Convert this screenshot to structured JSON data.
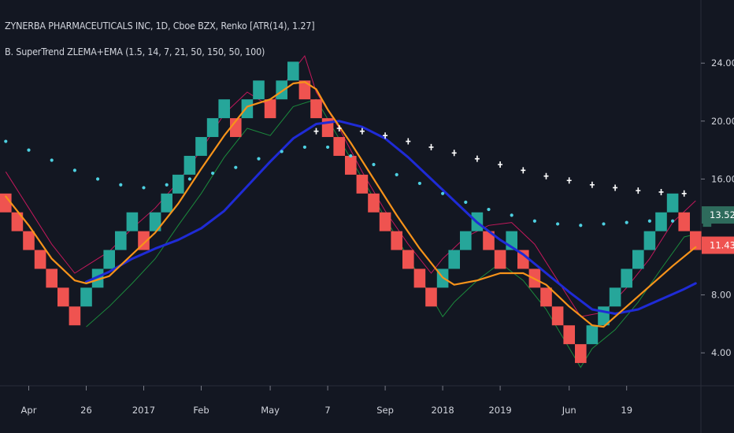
{
  "header": {
    "title": "ZYNERBA PHARMACEUTICALS INC, 1D, Cboe BZX, Renko [ATR(14), 1.27]",
    "indicator": "B. SuperTrend ZLEMA+EMA (1.5, 14, 7, 21, 50, 150, 50, 100)"
  },
  "colors": {
    "background": "#131722",
    "up_brick": "#26a69a",
    "down_brick": "#ef5350",
    "zlema_line": "#f7931a",
    "ema_line": "#1f2bd6",
    "cyan_dots": "#4dd0e1",
    "white_markers": "#ffffff",
    "red_trend": "#c2185b",
    "green_trend": "#1b8a3c"
  },
  "price_tags": [
    {
      "label": "13.52",
      "value": 13.52,
      "color": "#2e6b5c"
    },
    {
      "label": "11.43",
      "value": 11.43,
      "color": "#ef5350"
    }
  ],
  "chart_data": {
    "type": "renko",
    "title": "ZYNERBA PHARMACEUTICALS INC, 1D, Cboe BZX, Renko [ATR(14), 1.27]",
    "xlabel": "",
    "ylabel": "",
    "ylim": [
      2.0,
      27.0
    ],
    "y_ticks": [
      {
        "label": "24.00",
        "value": 24.0
      },
      {
        "label": "20.00",
        "value": 20.0
      },
      {
        "label": "16.00",
        "value": 16.0
      },
      {
        "label": "8.00",
        "value": 8.0
      },
      {
        "label": "4.00",
        "value": 4.0
      }
    ],
    "x_ticks": [
      {
        "label": "Apr",
        "index": 2
      },
      {
        "label": "26",
        "index": 7
      },
      {
        "label": "2017",
        "index": 12
      },
      {
        "label": "Feb",
        "index": 17
      },
      {
        "label": "May",
        "index": 23
      },
      {
        "label": "7",
        "index": 28
      },
      {
        "label": "Sep",
        "index": 33
      },
      {
        "label": "2018",
        "index": 38
      },
      {
        "label": "2019",
        "index": 43
      },
      {
        "label": "Jun",
        "index": 49
      },
      {
        "label": "19",
        "index": 54
      }
    ],
    "bricks": [
      {
        "i": 0,
        "dir": "down",
        "open": 15.0,
        "close": 13.7
      },
      {
        "i": 1,
        "dir": "down",
        "open": 13.7,
        "close": 12.4
      },
      {
        "i": 2,
        "dir": "down",
        "open": 12.4,
        "close": 11.1
      },
      {
        "i": 3,
        "dir": "down",
        "open": 11.1,
        "close": 9.8
      },
      {
        "i": 4,
        "dir": "down",
        "open": 9.8,
        "close": 8.5
      },
      {
        "i": 5,
        "dir": "down",
        "open": 8.5,
        "close": 7.2
      },
      {
        "i": 6,
        "dir": "down",
        "open": 7.2,
        "close": 5.9
      },
      {
        "i": 7,
        "dir": "up",
        "open": 7.2,
        "close": 8.5
      },
      {
        "i": 8,
        "dir": "up",
        "open": 8.5,
        "close": 9.8
      },
      {
        "i": 9,
        "dir": "up",
        "open": 9.8,
        "close": 11.1
      },
      {
        "i": 10,
        "dir": "up",
        "open": 11.1,
        "close": 12.4
      },
      {
        "i": 11,
        "dir": "up",
        "open": 12.4,
        "close": 13.7
      },
      {
        "i": 12,
        "dir": "down",
        "open": 12.4,
        "close": 11.1
      },
      {
        "i": 13,
        "dir": "up",
        "open": 12.4,
        "close": 13.7
      },
      {
        "i": 14,
        "dir": "up",
        "open": 13.7,
        "close": 15.0
      },
      {
        "i": 15,
        "dir": "up",
        "open": 15.0,
        "close": 16.3
      },
      {
        "i": 16,
        "dir": "up",
        "open": 16.3,
        "close": 17.6
      },
      {
        "i": 17,
        "dir": "up",
        "open": 17.6,
        "close": 18.9
      },
      {
        "i": 18,
        "dir": "up",
        "open": 18.9,
        "close": 20.2
      },
      {
        "i": 19,
        "dir": "up",
        "open": 20.2,
        "close": 21.5
      },
      {
        "i": 20,
        "dir": "down",
        "open": 20.2,
        "close": 18.9
      },
      {
        "i": 21,
        "dir": "up",
        "open": 20.2,
        "close": 21.5
      },
      {
        "i": 22,
        "dir": "up",
        "open": 21.5,
        "close": 22.8
      },
      {
        "i": 23,
        "dir": "down",
        "open": 21.5,
        "close": 20.2
      },
      {
        "i": 24,
        "dir": "up",
        "open": 21.5,
        "close": 22.8
      },
      {
        "i": 25,
        "dir": "up",
        "open": 22.8,
        "close": 24.1
      },
      {
        "i": 26,
        "dir": "down",
        "open": 22.8,
        "close": 21.5
      },
      {
        "i": 27,
        "dir": "down",
        "open": 21.5,
        "close": 20.2
      },
      {
        "i": 28,
        "dir": "down",
        "open": 20.2,
        "close": 18.9
      },
      {
        "i": 29,
        "dir": "down",
        "open": 18.9,
        "close": 17.6
      },
      {
        "i": 30,
        "dir": "down",
        "open": 17.6,
        "close": 16.3
      },
      {
        "i": 31,
        "dir": "down",
        "open": 16.3,
        "close": 15.0
      },
      {
        "i": 32,
        "dir": "down",
        "open": 15.0,
        "close": 13.7
      },
      {
        "i": 33,
        "dir": "down",
        "open": 13.7,
        "close": 12.4
      },
      {
        "i": 34,
        "dir": "down",
        "open": 12.4,
        "close": 11.1
      },
      {
        "i": 35,
        "dir": "down",
        "open": 11.1,
        "close": 9.8
      },
      {
        "i": 36,
        "dir": "down",
        "open": 9.8,
        "close": 8.5
      },
      {
        "i": 37,
        "dir": "down",
        "open": 8.5,
        "close": 7.2
      },
      {
        "i": 38,
        "dir": "up",
        "open": 8.5,
        "close": 9.8
      },
      {
        "i": 39,
        "dir": "up",
        "open": 9.8,
        "close": 11.1
      },
      {
        "i": 40,
        "dir": "up",
        "open": 11.1,
        "close": 12.4
      },
      {
        "i": 41,
        "dir": "up",
        "open": 12.4,
        "close": 13.7
      },
      {
        "i": 42,
        "dir": "down",
        "open": 12.4,
        "close": 11.1
      },
      {
        "i": 43,
        "dir": "down",
        "open": 11.1,
        "close": 9.8
      },
      {
        "i": 44,
        "dir": "up",
        "open": 11.1,
        "close": 12.4
      },
      {
        "i": 45,
        "dir": "down",
        "open": 11.1,
        "close": 9.8
      },
      {
        "i": 46,
        "dir": "down",
        "open": 9.8,
        "close": 8.5
      },
      {
        "i": 47,
        "dir": "down",
        "open": 8.5,
        "close": 7.2
      },
      {
        "i": 48,
        "dir": "down",
        "open": 7.2,
        "close": 5.9
      },
      {
        "i": 49,
        "dir": "down",
        "open": 5.9,
        "close": 4.6
      },
      {
        "i": 50,
        "dir": "down",
        "open": 4.6,
        "close": 3.3
      },
      {
        "i": 51,
        "dir": "up",
        "open": 4.6,
        "close": 5.9
      },
      {
        "i": 52,
        "dir": "up",
        "open": 5.9,
        "close": 7.2
      },
      {
        "i": 53,
        "dir": "up",
        "open": 7.2,
        "close": 8.5
      },
      {
        "i": 54,
        "dir": "up",
        "open": 8.5,
        "close": 9.8
      },
      {
        "i": 55,
        "dir": "up",
        "open": 9.8,
        "close": 11.1
      },
      {
        "i": 56,
        "dir": "up",
        "open": 11.1,
        "close": 12.4
      },
      {
        "i": 57,
        "dir": "up",
        "open": 12.4,
        "close": 13.7
      },
      {
        "i": 58,
        "dir": "up",
        "open": 13.7,
        "close": 15.0
      },
      {
        "i": 59,
        "dir": "down",
        "open": 13.7,
        "close": 12.4
      },
      {
        "i": 60,
        "dir": "down",
        "open": 12.4,
        "close": 11.1
      }
    ],
    "series": [
      {
        "name": "ZLEMA",
        "color": "#f7931a",
        "points": [
          [
            0,
            14.8
          ],
          [
            2,
            12.8
          ],
          [
            4,
            10.5
          ],
          [
            6,
            9.0
          ],
          [
            7,
            8.8
          ],
          [
            9,
            9.3
          ],
          [
            11,
            10.8
          ],
          [
            13,
            12.3
          ],
          [
            15,
            14.3
          ],
          [
            17,
            16.7
          ],
          [
            19,
            19.0
          ],
          [
            21,
            21.0
          ],
          [
            23,
            21.5
          ],
          [
            25,
            22.6
          ],
          [
            26,
            22.7
          ],
          [
            27,
            22.2
          ],
          [
            28,
            20.8
          ],
          [
            30,
            18.5
          ],
          [
            32,
            16.0
          ],
          [
            34,
            13.5
          ],
          [
            36,
            11.2
          ],
          [
            38,
            9.2
          ],
          [
            39,
            8.7
          ],
          [
            41,
            9.0
          ],
          [
            43,
            9.5
          ],
          [
            45,
            9.5
          ],
          [
            47,
            8.7
          ],
          [
            49,
            7.2
          ],
          [
            51,
            5.9
          ],
          [
            52,
            5.8
          ],
          [
            54,
            7.2
          ],
          [
            56,
            8.6
          ],
          [
            58,
            10.0
          ],
          [
            60,
            11.3
          ]
        ]
      },
      {
        "name": "EMA",
        "color": "#1f2bd6",
        "points": [
          [
            7,
            8.9
          ],
          [
            9,
            9.6
          ],
          [
            11,
            10.5
          ],
          [
            13,
            11.2
          ],
          [
            15,
            11.8
          ],
          [
            17,
            12.6
          ],
          [
            19,
            13.8
          ],
          [
            21,
            15.5
          ],
          [
            23,
            17.2
          ],
          [
            25,
            18.8
          ],
          [
            27,
            19.8
          ],
          [
            29,
            20.0
          ],
          [
            31,
            19.6
          ],
          [
            33,
            18.8
          ],
          [
            35,
            17.5
          ],
          [
            37,
            16.0
          ],
          [
            39,
            14.5
          ],
          [
            41,
            13.0
          ],
          [
            43,
            11.8
          ],
          [
            45,
            10.8
          ],
          [
            47,
            9.5
          ],
          [
            49,
            8.2
          ],
          [
            51,
            7.0
          ],
          [
            53,
            6.7
          ],
          [
            55,
            7.0
          ],
          [
            57,
            7.7
          ],
          [
            59,
            8.4
          ],
          [
            60,
            8.8
          ]
        ]
      },
      {
        "name": "Cyan dots",
        "color": "#4dd0e1",
        "points": [
          [
            0,
            18.6
          ],
          [
            2,
            18.0
          ],
          [
            4,
            17.3
          ],
          [
            6,
            16.6
          ],
          [
            8,
            16.0
          ],
          [
            10,
            15.6
          ],
          [
            12,
            15.4
          ],
          [
            14,
            15.6
          ],
          [
            16,
            16.0
          ],
          [
            18,
            16.4
          ],
          [
            20,
            16.8
          ],
          [
            22,
            17.4
          ],
          [
            24,
            17.9
          ],
          [
            26,
            18.2
          ],
          [
            28,
            18.2
          ],
          [
            30,
            17.6
          ],
          [
            32,
            17.0
          ],
          [
            34,
            16.3
          ],
          [
            36,
            15.7
          ],
          [
            38,
            15.0
          ],
          [
            40,
            14.4
          ],
          [
            42,
            13.9
          ],
          [
            44,
            13.5
          ],
          [
            46,
            13.1
          ],
          [
            48,
            12.9
          ],
          [
            50,
            12.8
          ],
          [
            52,
            12.9
          ],
          [
            54,
            13.0
          ],
          [
            56,
            13.1
          ],
          [
            58,
            13.1
          ]
        ]
      },
      {
        "name": "White markers",
        "color": "#ffffff",
        "points": [
          [
            27,
            19.3
          ],
          [
            29,
            19.5
          ],
          [
            31,
            19.3
          ],
          [
            33,
            19.0
          ],
          [
            35,
            18.6
          ],
          [
            37,
            18.2
          ],
          [
            39,
            17.8
          ],
          [
            41,
            17.4
          ],
          [
            43,
            17.0
          ],
          [
            45,
            16.6
          ],
          [
            47,
            16.2
          ],
          [
            49,
            15.9
          ],
          [
            51,
            15.6
          ],
          [
            53,
            15.4
          ],
          [
            55,
            15.2
          ],
          [
            57,
            15.1
          ],
          [
            59,
            15.0
          ]
        ]
      },
      {
        "name": "Red trend",
        "color": "#c2185b",
        "points": [
          [
            0,
            16.5
          ],
          [
            2,
            14.0
          ],
          [
            4,
            11.5
          ],
          [
            6,
            9.5
          ],
          [
            7,
            10.0
          ],
          [
            9,
            11.0
          ],
          [
            11,
            12.6
          ],
          [
            13,
            14.0
          ],
          [
            15,
            15.8
          ],
          [
            17,
            18.0
          ],
          [
            19,
            20.5
          ],
          [
            21,
            22.0
          ],
          [
            23,
            21.0
          ],
          [
            25,
            23.5
          ],
          [
            26,
            24.5
          ],
          [
            27,
            22.0
          ],
          [
            29,
            19.5
          ],
          [
            31,
            16.5
          ],
          [
            33,
            13.8
          ],
          [
            35,
            11.5
          ],
          [
            37,
            9.5
          ],
          [
            38,
            10.5
          ],
          [
            40,
            12.0
          ],
          [
            42,
            12.8
          ],
          [
            44,
            13.0
          ],
          [
            46,
            11.5
          ],
          [
            48,
            9.0
          ],
          [
            50,
            6.5
          ],
          [
            52,
            6.8
          ],
          [
            54,
            8.5
          ],
          [
            56,
            10.5
          ],
          [
            58,
            13.0
          ],
          [
            60,
            14.5
          ]
        ]
      },
      {
        "name": "Green trend",
        "color": "#1b8a3c",
        "points": [
          [
            7,
            5.8
          ],
          [
            9,
            7.2
          ],
          [
            11,
            8.8
          ],
          [
            13,
            10.5
          ],
          [
            15,
            12.8
          ],
          [
            17,
            15.0
          ],
          [
            19,
            17.5
          ],
          [
            21,
            19.5
          ],
          [
            23,
            19.0
          ],
          [
            25,
            21.0
          ],
          [
            27,
            21.5
          ],
          [
            38,
            6.5
          ],
          [
            39,
            7.5
          ],
          [
            41,
            9.0
          ],
          [
            43,
            10.2
          ],
          [
            45,
            9.0
          ],
          [
            47,
            7.0
          ],
          [
            50,
            3.0
          ],
          [
            51,
            4.3
          ],
          [
            53,
            5.6
          ],
          [
            55,
            7.5
          ],
          [
            57,
            9.8
          ],
          [
            59,
            12.0
          ],
          [
            60,
            12.2
          ]
        ]
      }
    ]
  }
}
